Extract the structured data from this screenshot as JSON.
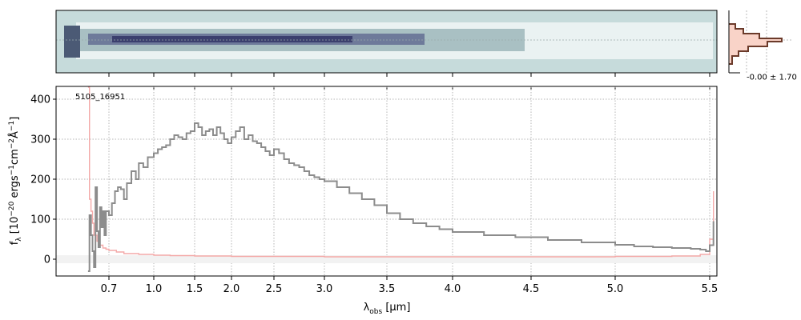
{
  "chart_data": [
    {
      "type": "heatmap",
      "panel": "2d-spectrum",
      "description_free": true,
      "colors": {
        "background": "#c6dbdb",
        "trace": "#3b3f6e",
        "mid": "#8fa9ad",
        "light": "#eaf2f2"
      }
    },
    {
      "type": "line",
      "panel": "1d-spectrum",
      "annotation": "5105_16951",
      "xlabel": "λ",
      "xlabel_sub": "obs",
      "xlabel_unit": " [μm]",
      "ylabel": "f",
      "ylabel_sub": "λ",
      "ylabel_unit": " [10",
      "ylabel_exp1": "−20",
      "ylabel_mid1": " ergs",
      "ylabel_exp2": "−1",
      "ylabel_mid2": "cm",
      "ylabel_exp3": "−2",
      "ylabel_mid3": "Å",
      "ylabel_exp4": "−1",
      "ylabel_end": "]",
      "ylim": [
        -42,
        432
      ],
      "yticks": [
        "0",
        "100",
        "200",
        "300",
        "400"
      ],
      "yticks_values": [
        0,
        100,
        200,
        300,
        400
      ],
      "x_scale": "sqrt-like (custom)",
      "xlim": [
        0.55,
        5.53
      ],
      "xticks": [
        "0.7",
        "1.0",
        "1.5",
        "2.0",
        "2.5",
        "3.0",
        "3.5",
        "4.0",
        "4.5",
        "5.0",
        "5.5"
      ],
      "xticks_values": [
        0.7,
        1.0,
        1.5,
        2.0,
        2.5,
        3.0,
        3.5,
        4.0,
        4.5,
        5.0,
        5.5
      ],
      "grid": true,
      "series": [
        {
          "color": "#8c8c8c",
          "x": [
            0.56,
            0.57,
            0.58,
            0.59,
            0.6,
            0.61,
            0.62,
            0.63,
            0.64,
            0.65,
            0.66,
            0.67,
            0.68,
            0.7,
            0.72,
            0.74,
            0.76,
            0.78,
            0.8,
            0.82,
            0.85,
            0.88,
            0.9,
            0.93,
            0.96,
            1.0,
            1.05,
            1.1,
            1.15,
            1.2,
            1.25,
            1.3,
            1.35,
            1.4,
            1.45,
            1.5,
            1.55,
            1.6,
            1.65,
            1.7,
            1.75,
            1.8,
            1.85,
            1.9,
            1.95,
            2.0,
            2.05,
            2.1,
            2.15,
            2.2,
            2.25,
            2.3,
            2.35,
            2.4,
            2.45,
            2.5,
            2.55,
            2.6,
            2.65,
            2.7,
            2.75,
            2.8,
            2.85,
            2.9,
            2.95,
            3.0,
            3.1,
            3.2,
            3.3,
            3.4,
            3.5,
            3.6,
            3.7,
            3.8,
            3.9,
            4.0,
            4.2,
            4.4,
            4.6,
            4.8,
            5.0,
            5.1,
            5.2,
            5.3,
            5.4,
            5.45,
            5.48,
            5.5,
            5.52
          ],
          "y": [
            -30,
            110,
            60,
            20,
            -20,
            180,
            70,
            30,
            130,
            80,
            120,
            60,
            120,
            110,
            140,
            170,
            180,
            175,
            150,
            190,
            220,
            200,
            240,
            230,
            255,
            265,
            275,
            280,
            285,
            300,
            310,
            305,
            300,
            315,
            320,
            340,
            330,
            310,
            320,
            325,
            310,
            330,
            315,
            300,
            290,
            305,
            320,
            330,
            300,
            310,
            295,
            290,
            280,
            270,
            260,
            275,
            265,
            250,
            240,
            235,
            230,
            220,
            210,
            205,
            200,
            195,
            180,
            165,
            150,
            135,
            115,
            100,
            90,
            82,
            75,
            68,
            60,
            55,
            48,
            42,
            36,
            32,
            30,
            28,
            26,
            24,
            20,
            35,
            95
          ]
        },
        {
          "color": "#f4a9a8",
          "x": [
            0.56,
            0.57,
            0.58,
            0.59,
            0.6,
            0.62,
            0.64,
            0.66,
            0.68,
            0.7,
            0.75,
            0.8,
            0.9,
            1.0,
            1.2,
            1.5,
            2.0,
            2.5,
            3.0,
            3.5,
            4.0,
            4.5,
            5.0,
            5.3,
            5.45,
            5.5,
            5.52
          ],
          "y": [
            430,
            150,
            120,
            90,
            60,
            45,
            35,
            28,
            25,
            22,
            18,
            14,
            12,
            10,
            9,
            8,
            7,
            7,
            6,
            6,
            6,
            6,
            7,
            8,
            12,
            50,
            170
          ]
        }
      ]
    },
    {
      "type": "area",
      "panel": "histogram",
      "label": "-0.00 ± 1.70",
      "colors": {
        "fill": "#f9d3c8",
        "line": "#6b3a2a"
      }
    }
  ]
}
